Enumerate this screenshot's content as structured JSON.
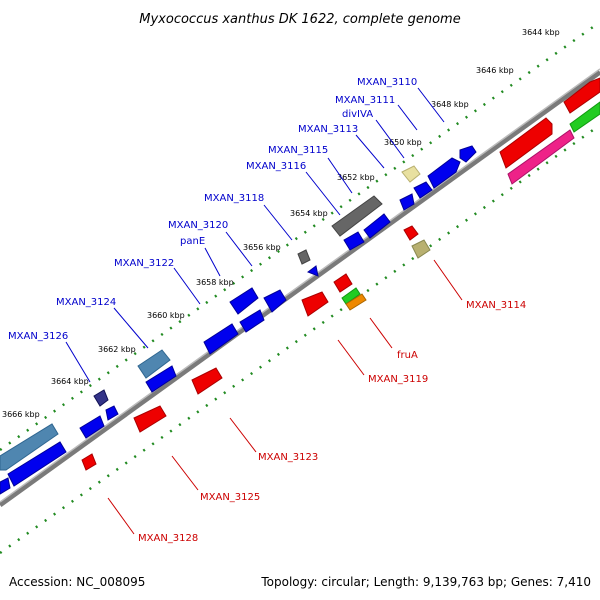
{
  "title": "Myxococcus xanthus DK 1622, complete genome",
  "footer": {
    "accession": "Accession: NC_008095",
    "summary": "Topology: circular; Length: 9,139,763 bp; Genes: 7,410"
  },
  "ticks": [
    "3644 kbp",
    "3646 kbp",
    "3648 kbp",
    "3650 kbp",
    "3652 kbp",
    "3654 kbp",
    "3656 kbp",
    "3658 kbp",
    "3660 kbp",
    "3662 kbp",
    "3664 kbp",
    "3666 kbp"
  ],
  "forward_labels": [
    "MXAN_3110",
    "MXAN_3111",
    "divIVA",
    "MXAN_3113",
    "MXAN_3115",
    "MXAN_3116",
    "MXAN_3118",
    "MXAN_3120",
    "panE",
    "MXAN_3122",
    "MXAN_3124",
    "MXAN_3126"
  ],
  "reverse_labels": [
    "MXAN_3114",
    "fruA",
    "MXAN_3119",
    "MXAN_3123",
    "MXAN_3125",
    "MXAN_3128"
  ],
  "colors": {
    "forward_gene": "#0000ee",
    "reverse_gene": "#ee0000",
    "forward_label": "#0000cc",
    "reverse_label": "#cc0000",
    "backbone": "#888888",
    "tick_dots": "#228b22",
    "gray_gene": "#666666",
    "steelblue_gene": "#4f86b0",
    "khaki_gene": "#e8e0a0",
    "olive_gene": "#b8b070",
    "green_gene": "#22cc22",
    "orange_gene": "#ee8800",
    "pink_gene": "#ee2288",
    "darkblue_gene": "#333388"
  }
}
